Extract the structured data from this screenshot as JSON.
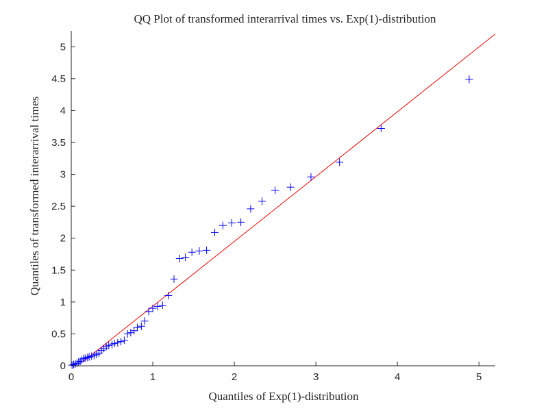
{
  "chart_data": {
    "type": "scatter",
    "title": "QQ Plot of transformed interarrival times vs. Exp(1)-distribution",
    "xlabel": "Quantiles of Exp(1)-distribution",
    "ylabel": "Quantiles of transformed interarrival times",
    "xlim": [
      0,
      5.2
    ],
    "ylim": [
      0,
      5.25
    ],
    "xticks": [
      "0",
      "1",
      "2",
      "3",
      "4",
      "5"
    ],
    "yticks": [
      "0",
      "0.5",
      "1",
      "1.5",
      "2",
      "2.5",
      "3",
      "3.5",
      "4",
      "4.5",
      "5"
    ],
    "grid": false,
    "marker": "+",
    "marker_color": "#0000ff",
    "reference_line": {
      "color": "#ff0000",
      "points": [
        [
          0.15,
          0.07
        ],
        [
          5.2,
          5.2
        ]
      ]
    },
    "points": [
      [
        0.01,
        0.01
      ],
      [
        0.03,
        0.02
      ],
      [
        0.05,
        0.03
      ],
      [
        0.07,
        0.04
      ],
      [
        0.09,
        0.06
      ],
      [
        0.11,
        0.07
      ],
      [
        0.13,
        0.09
      ],
      [
        0.15,
        0.11
      ],
      [
        0.17,
        0.12
      ],
      [
        0.2,
        0.13
      ],
      [
        0.22,
        0.14
      ],
      [
        0.25,
        0.15
      ],
      [
        0.28,
        0.16
      ],
      [
        0.31,
        0.18
      ],
      [
        0.34,
        0.2
      ],
      [
        0.37,
        0.24
      ],
      [
        0.4,
        0.27
      ],
      [
        0.43,
        0.3
      ],
      [
        0.46,
        0.32
      ],
      [
        0.5,
        0.33
      ],
      [
        0.53,
        0.35
      ],
      [
        0.57,
        0.36
      ],
      [
        0.61,
        0.38
      ],
      [
        0.65,
        0.4
      ],
      [
        0.69,
        0.5
      ],
      [
        0.73,
        0.52
      ],
      [
        0.77,
        0.55
      ],
      [
        0.81,
        0.6
      ],
      [
        0.86,
        0.62
      ],
      [
        0.9,
        0.7
      ],
      [
        0.95,
        0.85
      ],
      [
        1.0,
        0.9
      ],
      [
        1.06,
        0.93
      ],
      [
        1.12,
        0.95
      ],
      [
        1.19,
        1.1
      ],
      [
        1.26,
        1.36
      ],
      [
        1.33,
        1.68
      ],
      [
        1.4,
        1.7
      ],
      [
        1.48,
        1.78
      ],
      [
        1.57,
        1.8
      ],
      [
        1.66,
        1.81
      ],
      [
        1.76,
        2.09
      ],
      [
        1.86,
        2.2
      ],
      [
        1.97,
        2.24
      ],
      [
        2.08,
        2.25
      ],
      [
        2.2,
        2.46
      ],
      [
        2.34,
        2.58
      ],
      [
        2.5,
        2.75
      ],
      [
        2.69,
        2.8
      ],
      [
        2.94,
        2.96
      ],
      [
        3.29,
        3.19
      ],
      [
        3.8,
        3.72
      ],
      [
        4.88,
        4.49
      ]
    ]
  }
}
